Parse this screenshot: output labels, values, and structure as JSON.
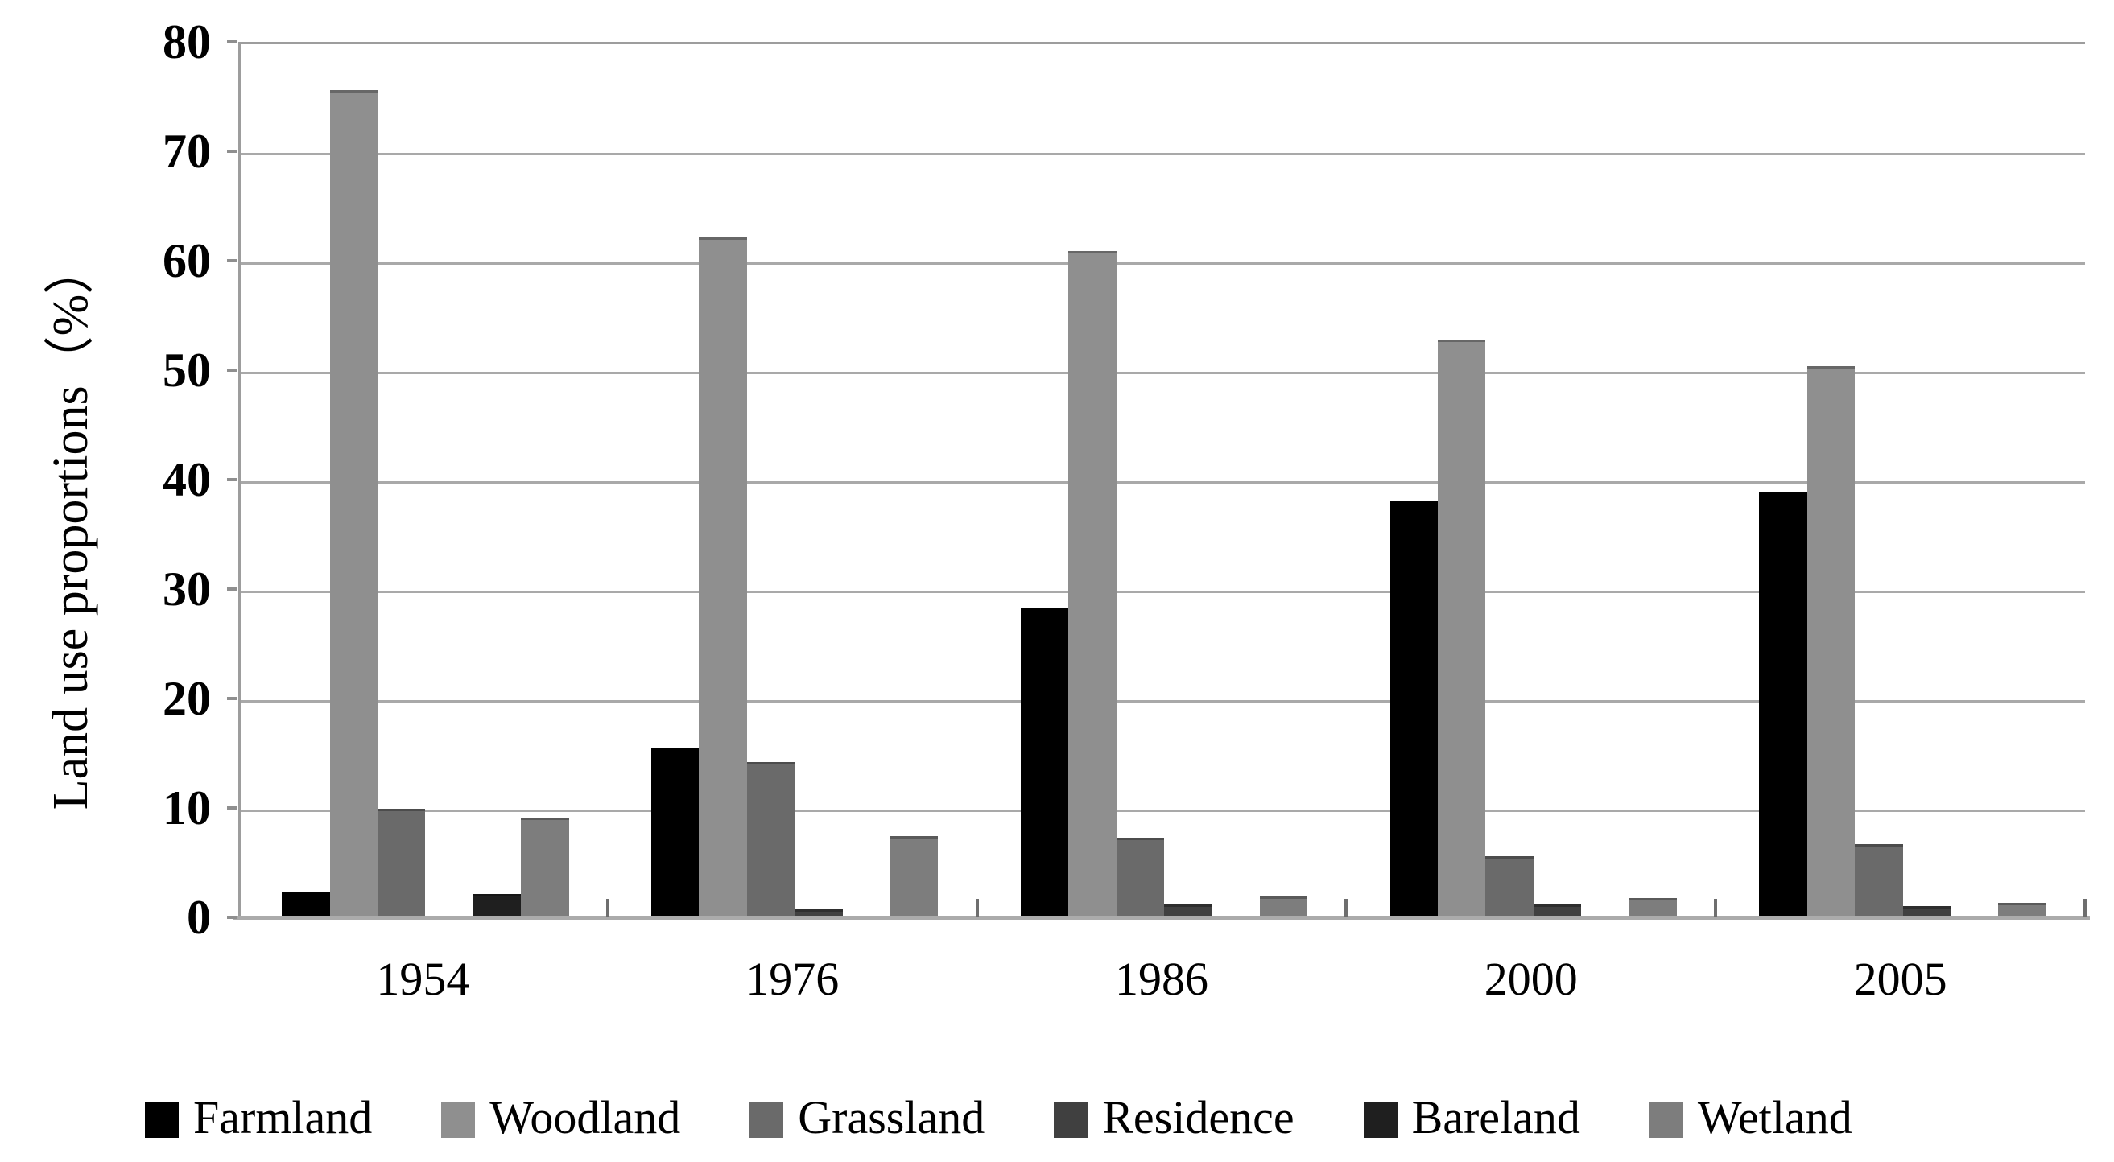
{
  "chart_data": {
    "type": "bar",
    "title": "",
    "ylabel": "Land use proportions（%）",
    "xlabel": "",
    "categories": [
      "1954",
      "1976",
      "1986",
      "2000",
      "2005"
    ],
    "series": [
      {
        "name": "Farmland",
        "color": "#000000",
        "values": [
          2.3,
          15.5,
          28.3,
          38.1,
          38.8
        ]
      },
      {
        "name": "Woodland",
        "color": "#8f8f8f",
        "values": [
          75.6,
          62.1,
          60.9,
          52.8,
          50.4
        ]
      },
      {
        "name": "Grassland",
        "color": "#6a6a6a",
        "values": [
          9.9,
          14.2,
          7.3,
          5.6,
          6.7
        ]
      },
      {
        "name": "Residence",
        "color": "#404040",
        "values": [
          0,
          0.7,
          1.2,
          1.2,
          1.0
        ]
      },
      {
        "name": "Bareland",
        "color": "#1f1f1f",
        "values": [
          2.1,
          0,
          0,
          0,
          0
        ]
      },
      {
        "name": "Wetland",
        "color": "#7d7d7d",
        "values": [
          9.1,
          7.4,
          1.9,
          1.8,
          1.3
        ]
      }
    ],
    "ylim": [
      0,
      80
    ],
    "yticks": [
      0,
      10,
      20,
      30,
      40,
      50,
      60,
      70,
      80
    ],
    "grid": true,
    "legend_position": "bottom",
    "gridline_color": "#a9a9a9",
    "background_color": "#ffffff"
  }
}
